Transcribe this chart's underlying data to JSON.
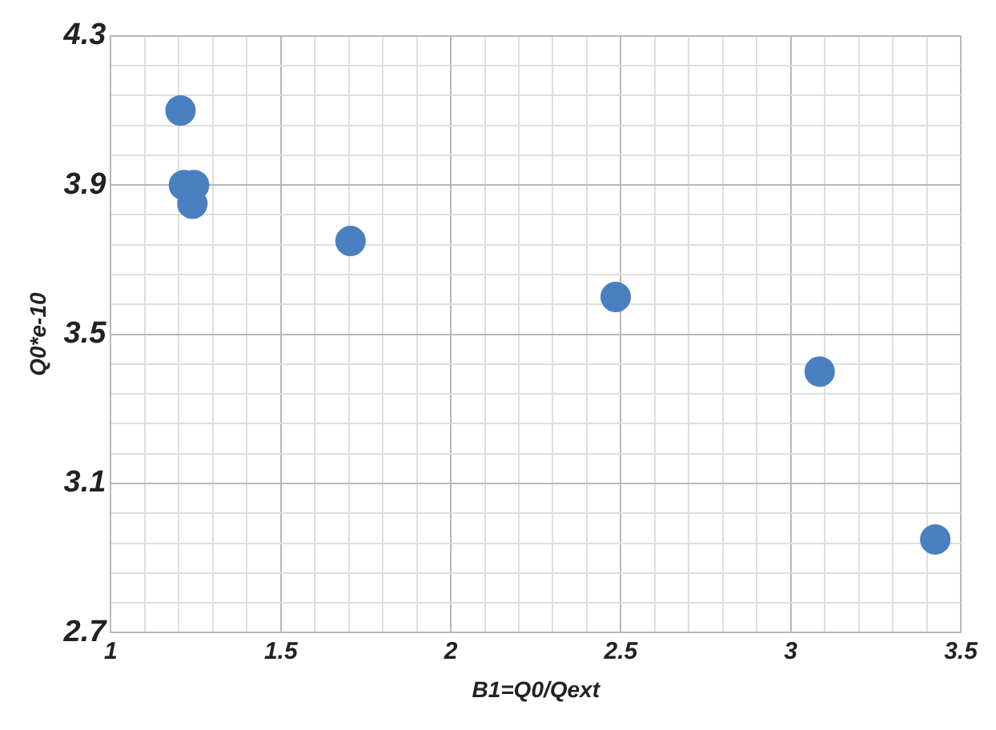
{
  "chart_data": {
    "type": "scatter",
    "xlabel": "B1=Q0/Qext",
    "ylabel": "Q0*e-10",
    "series": [
      {
        "color": "#4a7fc1",
        "x": [
          1.205,
          1.215,
          1.245,
          1.24,
          1.705,
          2.485,
          3.085,
          3.425
        ],
        "values": [
          4.1,
          3.9,
          3.9,
          3.85,
          3.75,
          3.6,
          3.4,
          2.95
        ]
      }
    ],
    "xlim": [
      1,
      3.5
    ],
    "xticks": [
      1,
      {
        "value": 1.1,
        "label": null
      },
      {
        "value": 1.2,
        "label": null
      },
      {
        "value": 1.3,
        "label": null
      },
      {
        "value": 1.4,
        "label": null
      },
      1.5,
      {
        "value": 1.6,
        "label": null
      },
      {
        "value": 1.7,
        "label": null
      },
      {
        "value": 1.8,
        "label": null
      },
      {
        "value": 1.9,
        "label": null
      },
      2,
      {
        "value": 2.1,
        "label": null
      },
      {
        "value": 2.2,
        "label": null
      },
      {
        "value": 2.3,
        "label": null
      },
      {
        "value": 2.4,
        "label": null
      },
      2.5,
      {
        "value": 2.6,
        "label": null
      },
      {
        "value": 2.7,
        "label": null
      },
      {
        "value": 2.8,
        "label": null
      },
      {
        "value": 2.9,
        "label": null
      },
      3,
      {
        "value": 3.1,
        "label": null
      },
      {
        "value": 3.2,
        "label": null
      },
      {
        "value": 3.3,
        "label": null
      },
      {
        "value": 3.4,
        "label": null
      },
      3.5
    ],
    "ylim": [
      2.7,
      4.3
    ],
    "yticks": [
      2.7,
      {
        "value": 2.78,
        "label": null
      },
      {
        "value": 2.86,
        "label": null
      },
      {
        "value": 2.94,
        "label": null
      },
      {
        "value": 3.02,
        "label": null
      },
      3.1,
      {
        "value": 3.18,
        "label": null
      },
      {
        "value": 3.26,
        "label": null
      },
      {
        "value": 3.34,
        "label": null
      },
      {
        "value": 3.42,
        "label": null
      },
      3.5,
      {
        "value": 3.58,
        "label": null
      },
      {
        "value": 3.66,
        "label": null
      },
      {
        "value": 3.74,
        "label": null
      },
      {
        "value": 3.82,
        "label": null
      },
      3.9,
      {
        "value": 3.98,
        "label": null
      },
      {
        "value": 4.06,
        "label": null
      },
      {
        "value": 4.14,
        "label": null
      },
      {
        "value": 4.22,
        "label": null
      },
      4.3
    ],
    "grid": true,
    "legend": false,
    "marker": "circle"
  }
}
